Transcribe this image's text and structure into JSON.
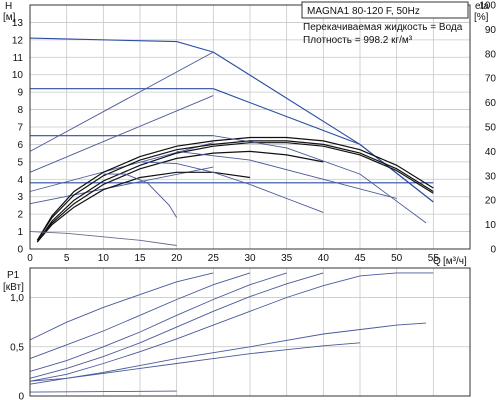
{
  "title": "MAGNA1 80-120 F, 50Hz",
  "liquid_label": "Перекачиваемая жидкость = Вода",
  "density_label": "Плотность = 998.2 кг/м³",
  "colors": {
    "qh_curve": "#111111",
    "system_curves": "#4a5a9a",
    "limit_lines": "#2c4fa3",
    "efficiency": "#6a6a8a",
    "grid": "#c8c8c8"
  },
  "chart_data": [
    {
      "type": "line",
      "title": "MAGNA1 80-120 F, 50Hz",
      "ylabel": "H",
      "yunit": "[м]",
      "y2label": "eta",
      "y2unit": "[%]",
      "xlabel": "Q",
      "xunit": "[м³/ч]",
      "xlim": [
        0,
        60
      ],
      "ylim": [
        0,
        14
      ],
      "y2lim": [
        0,
        100
      ],
      "x_ticks": [
        0,
        5,
        10,
        15,
        20,
        25,
        30,
        35,
        40,
        45,
        50,
        55
      ],
      "y_ticks": [
        0,
        1,
        2,
        3,
        4,
        5,
        6,
        7,
        8,
        9,
        10,
        11,
        12,
        13
      ],
      "y2_ticks": [
        0,
        10,
        20,
        30,
        40,
        50,
        60,
        70,
        80,
        90,
        100
      ],
      "grid": true,
      "series": [
        {
          "kind": "limit",
          "x": [
            0,
            20,
            25
          ],
          "y": [
            12.1,
            11.9,
            11.3
          ]
        },
        {
          "kind": "limit",
          "x": [
            0,
            25
          ],
          "y": [
            9.2,
            9.2
          ]
        },
        {
          "kind": "limit",
          "x": [
            0,
            25
          ],
          "y": [
            6.5,
            6.5
          ]
        },
        {
          "kind": "limit",
          "x": [
            0,
            25
          ],
          "y": [
            3.8,
            3.8
          ]
        },
        {
          "kind": "limit",
          "x": [
            25,
            45,
            55
          ],
          "y": [
            11.3,
            6.0,
            2.7
          ]
        },
        {
          "kind": "limit",
          "x": [
            25,
            45,
            55
          ],
          "y": [
            9.2,
            6.0,
            2.7
          ]
        },
        {
          "kind": "limit",
          "x": [
            25,
            55
          ],
          "y": [
            3.8,
            3.8
          ]
        },
        {
          "kind": "system",
          "x": [
            0,
            25
          ],
          "y": [
            5.6,
            11.3
          ]
        },
        {
          "kind": "system",
          "x": [
            0,
            25
          ],
          "y": [
            4.4,
            8.8
          ]
        },
        {
          "kind": "system",
          "x": [
            0,
            25
          ],
          "y": [
            3.3,
            6.1
          ]
        },
        {
          "kind": "system",
          "x": [
            0,
            25
          ],
          "y": [
            2.6,
            4.7
          ]
        },
        {
          "kind": "qh",
          "x": [
            1,
            3,
            6,
            10,
            15,
            20,
            25,
            30,
            35,
            40,
            45,
            50,
            55
          ],
          "y": [
            0.5,
            1.9,
            3.3,
            4.4,
            5.3,
            5.9,
            6.2,
            6.4,
            6.4,
            6.2,
            5.7,
            4.8,
            3.5
          ]
        },
        {
          "kind": "qh",
          "x": [
            1,
            3,
            6,
            10,
            15,
            20,
            25,
            30,
            35,
            40,
            45,
            50,
            55
          ],
          "y": [
            0.5,
            1.8,
            3.1,
            4.2,
            5.1,
            5.7,
            6.0,
            6.2,
            6.2,
            6.0,
            5.5,
            4.6,
            3.3
          ]
        },
        {
          "kind": "qh",
          "x": [
            1,
            3,
            6,
            10,
            15,
            20,
            25,
            30,
            35,
            40,
            45,
            50,
            55
          ],
          "y": [
            0.4,
            1.6,
            2.8,
            3.9,
            4.8,
            5.5,
            5.9,
            6.1,
            6.1,
            5.9,
            5.4,
            4.5,
            3.2
          ]
        },
        {
          "kind": "qh",
          "x": [
            1,
            3,
            6,
            10,
            15,
            20,
            25,
            30,
            35,
            40
          ],
          "y": [
            0.4,
            1.5,
            2.6,
            3.7,
            4.6,
            5.2,
            5.5,
            5.6,
            5.4,
            5.0
          ]
        },
        {
          "kind": "qh",
          "x": [
            1,
            3,
            6,
            10,
            15,
            20,
            25,
            30
          ],
          "y": [
            0.4,
            1.4,
            2.4,
            3.4,
            4.1,
            4.4,
            4.4,
            4.1
          ]
        },
        {
          "kind": "tail",
          "x": [
            25,
            35,
            45,
            54
          ],
          "y": [
            6.5,
            5.8,
            4.3,
            1.5
          ]
        },
        {
          "kind": "tail",
          "x": [
            20,
            30,
            40,
            50
          ],
          "y": [
            5.6,
            5.1,
            4.0,
            2.9
          ]
        },
        {
          "kind": "tail",
          "x": [
            15,
            20,
            25,
            30,
            35,
            40
          ],
          "y": [
            5.0,
            4.9,
            4.4,
            3.7,
            2.9,
            2.1
          ]
        },
        {
          "kind": "tail",
          "x": [
            10,
            13,
            16,
            19,
            20
          ],
          "y": [
            4.3,
            4.3,
            3.8,
            2.5,
            1.8
          ]
        },
        {
          "kind": "efficiency",
          "x": [
            0,
            5,
            10,
            15,
            20
          ],
          "y": [
            1.0,
            0.9,
            0.7,
            0.5,
            0.2
          ]
        }
      ]
    },
    {
      "type": "line",
      "ylabel": "P1",
      "yunit": "[кВт]",
      "xlim": [
        0,
        60
      ],
      "ylim": [
        0,
        1.3
      ],
      "y_ticks": [
        0,
        0.5,
        1.0
      ],
      "y_tick_labels": [
        "0",
        "0,5",
        "1,0"
      ],
      "grid": true,
      "series": [
        {
          "x": [
            0,
            5,
            10,
            15,
            20,
            25
          ],
          "y": [
            0.57,
            0.75,
            0.9,
            1.03,
            1.16,
            1.25
          ]
        },
        {
          "x": [
            0,
            5,
            10,
            15,
            20,
            25,
            30
          ],
          "y": [
            0.38,
            0.52,
            0.66,
            0.82,
            0.98,
            1.13,
            1.25
          ]
        },
        {
          "x": [
            0,
            5,
            10,
            15,
            20,
            25,
            30,
            35
          ],
          "y": [
            0.25,
            0.36,
            0.5,
            0.65,
            0.82,
            0.98,
            1.13,
            1.25
          ]
        },
        {
          "x": [
            0,
            5,
            10,
            15,
            20,
            25,
            30,
            35,
            40
          ],
          "y": [
            0.18,
            0.28,
            0.4,
            0.54,
            0.7,
            0.86,
            1.01,
            1.14,
            1.25
          ]
        },
        {
          "x": [
            0,
            5,
            10,
            15,
            20,
            25,
            30,
            35,
            40,
            45,
            50,
            55
          ],
          "y": [
            0.15,
            0.22,
            0.33,
            0.45,
            0.58,
            0.72,
            0.86,
            1.0,
            1.12,
            1.22,
            1.25,
            1.25
          ]
        },
        {
          "x": [
            0,
            10,
            20,
            30,
            40,
            50,
            54
          ],
          "y": [
            0.12,
            0.24,
            0.38,
            0.5,
            0.63,
            0.72,
            0.74
          ]
        },
        {
          "x": [
            0,
            5,
            10,
            15,
            20,
            25,
            30,
            35,
            40,
            45
          ],
          "y": [
            0.15,
            0.18,
            0.23,
            0.28,
            0.33,
            0.38,
            0.43,
            0.47,
            0.51,
            0.54
          ]
        },
        {
          "x": [
            0,
            20
          ],
          "y": [
            0.04,
            0.05
          ]
        }
      ]
    }
  ]
}
